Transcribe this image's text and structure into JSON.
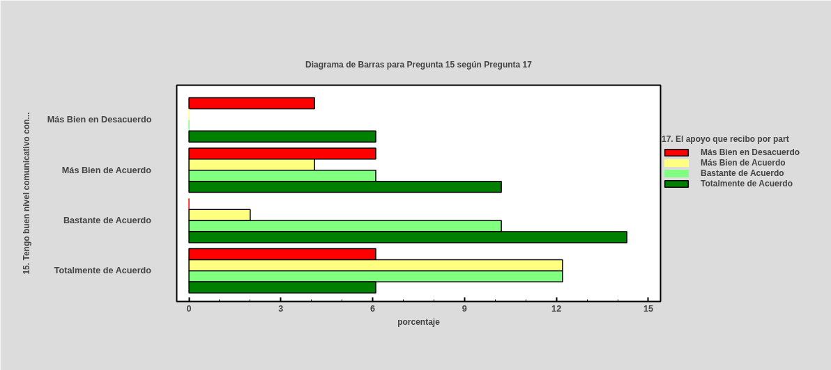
{
  "chart_data": {
    "type": "bar",
    "orientation": "horizontal",
    "title": "Diagrama de Barras para Pregunta 15 según Pregunta 17",
    "xlabel": "porcentaje",
    "ylabel": "15. Tengo buen nivel comunicativo con...",
    "legend_title": "17. El apoyo que recibo por part",
    "categories": [
      "Más Bien en Desacuerdo",
      "Más Bien de Acuerdo",
      "Bastante de Acuerdo",
      "Totalmente de Acuerdo"
    ],
    "series": [
      {
        "name": "Más Bien en Desacuerdo",
        "color": "#ff0000",
        "values": [
          4.1,
          6.1,
          0,
          6.1
        ]
      },
      {
        "name": "Más Bien de Acuerdo",
        "color": "#ffff80",
        "values": [
          0,
          4.1,
          2.0,
          12.2
        ]
      },
      {
        "name": "Bastante de Acuerdo",
        "color": "#80ff80",
        "values": [
          0,
          6.1,
          10.2,
          12.2
        ]
      },
      {
        "name": "Totalmente de Acuerdo",
        "color": "#008000",
        "values": [
          6.1,
          10.2,
          14.3,
          6.1
        ]
      }
    ],
    "xlim": [
      -0.4,
      15.4
    ],
    "xticks": [
      0,
      3,
      6,
      9,
      12,
      15
    ],
    "grid": false,
    "legend": "right"
  }
}
